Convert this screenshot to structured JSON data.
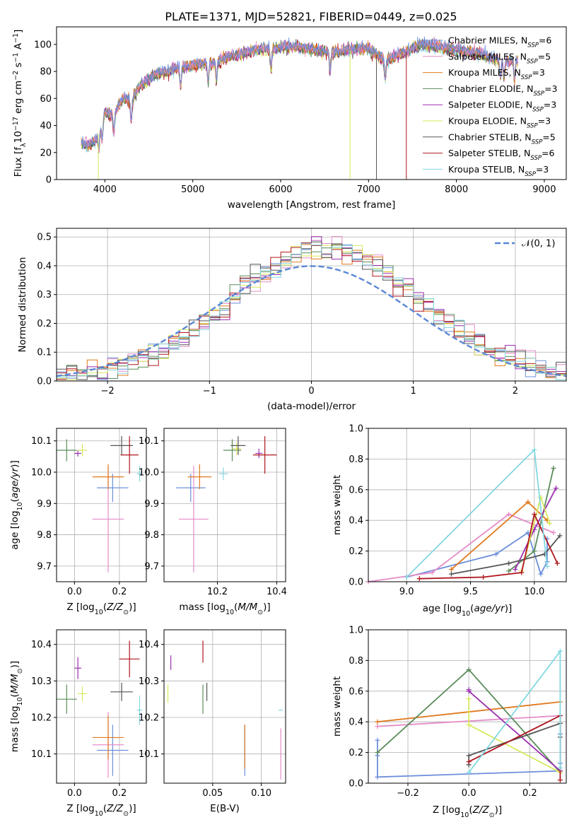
{
  "title": "PLATE=1371, MJD=52821, FIBERID=0449, z=0.025",
  "colors": {
    "Chabrier MILES": "#6c8fdb",
    "Salpeter MILES": "#e58cc8",
    "Kroupa MILES": "#e07a1f",
    "Chabrier ELODIE": "#5b8c5a",
    "Salpeter ELODIE": "#9b2fae",
    "Kroupa ELODIE": "#d7e85a",
    "Chabrier STELIB": "#555555",
    "Salpeter STELIB": "#b0171f",
    "Kroupa STELIB": "#82d8e0"
  },
  "chart_data": [
    {
      "id": "spectrum",
      "type": "line",
      "title": "PLATE=1371, MJD=52821, FIBERID=0449, z=0.025",
      "xlabel": "wavelength [Angstrom, rest frame]",
      "ylabel": "Flux [f_λ 10^-17 erg cm^-2 s^-1 A^-1]",
      "xlim": [
        3450,
        9250
      ],
      "ylim": [
        0,
        113
      ],
      "xticks": [
        4000,
        5000,
        6000,
        7000,
        8000,
        9000
      ],
      "yticks": [
        0,
        20,
        40,
        60,
        80,
        100
      ],
      "legend": "right",
      "legend_labels": [
        {
          "name": "Chabrier MILES",
          "n": "6"
        },
        {
          "name": "Salpeter MILES",
          "n": "5"
        },
        {
          "name": "Kroupa MILES",
          "n": "3"
        },
        {
          "name": "Chabrier ELODIE",
          "n": "3"
        },
        {
          "name": "Salpeter ELODIE",
          "n": "3"
        },
        {
          "name": "Kroupa ELODIE",
          "n": "3"
        },
        {
          "name": "Chabrier STELIB",
          "n": "5"
        },
        {
          "name": "Salpeter STELIB",
          "n": "6"
        },
        {
          "name": "Kroupa STELIB",
          "n": "3"
        }
      ],
      "continuum": {
        "x": [
          3730,
          3800,
          3900,
          4000,
          4100,
          4200,
          4300,
          4400,
          4500,
          4600,
          4800,
          5000,
          5200,
          5400,
          5600,
          5800,
          5900,
          6000,
          6200,
          6400,
          6600,
          6800,
          6900,
          7000,
          7100,
          7200,
          7400,
          7600,
          7800,
          8000,
          8200,
          8400,
          8600,
          8700
        ],
        "y": [
          28,
          25,
          29,
          50,
          48,
          60,
          58,
          70,
          75,
          78,
          82,
          85,
          86,
          91,
          94,
          97,
          96,
          98,
          98,
          96,
          94,
          96,
          97,
          97,
          92,
          88,
          94,
          100,
          98,
          96,
          94,
          90,
          88,
          88
        ]
      },
      "absorption_features": [
        3933,
        3968,
        4102,
        4300,
        4861,
        5175,
        5270,
        5890,
        6563,
        7190,
        8500,
        8542,
        8662
      ],
      "spikes": [
        {
          "x": 3925,
          "series": "Kroupa ELODIE"
        },
        {
          "x": 6790,
          "series": "Kroupa ELODIE"
        },
        {
          "x": 7090,
          "series": "Chabrier STELIB"
        },
        {
          "x": 7430,
          "series": "Salpeter STELIB"
        }
      ]
    },
    {
      "id": "residuals",
      "type": "line",
      "xlabel": "(data-model)/error",
      "ylabel": "Normed distribution",
      "xlim": [
        -2.5,
        2.5
      ],
      "ylim": [
        0,
        0.53
      ],
      "xticks": [
        -2,
        -1,
        0,
        1,
        2
      ],
      "yticks": [
        0.0,
        0.1,
        0.2,
        0.3,
        0.4,
        0.5
      ],
      "grid": true,
      "legend": "top-right",
      "gaussian_label": "𝒩(0, 1)",
      "bin_width": 0.1
    },
    {
      "id": "age-vs-Z",
      "type": "scatter",
      "xlabel": "Z [log10(Z/Z⊙)]",
      "ylabel": "age [log10(age/yr)]",
      "xlim": [
        -0.08,
        0.32
      ],
      "ylim": [
        9.65,
        10.14
      ],
      "xticks": [
        0.0,
        0.2
      ],
      "yticks": [
        9.7,
        9.8,
        9.9,
        10.0,
        10.1
      ],
      "grid": true,
      "points": [
        {
          "series": "Chabrier MILES",
          "x": 0.17,
          "y": 9.95,
          "xerr": 0.07,
          "yerr": 0.045
        },
        {
          "series": "Salpeter MILES",
          "x": 0.15,
          "y": 9.85,
          "xerr": 0.07,
          "yerr": 0.17
        },
        {
          "series": "Kroupa MILES",
          "x": 0.15,
          "y": 9.985,
          "xerr": 0.07,
          "yerr": 0.04
        },
        {
          "series": "Chabrier ELODIE",
          "x": -0.035,
          "y": 10.07,
          "xerr": 0.045,
          "yerr": 0.035
        },
        {
          "series": "Salpeter ELODIE",
          "x": 0.015,
          "y": 10.06,
          "xerr": 0.015,
          "yerr": 0.01
        },
        {
          "series": "Kroupa ELODIE",
          "x": 0.035,
          "y": 10.07,
          "xerr": 0.02,
          "yerr": 0.02
        },
        {
          "series": "Chabrier STELIB",
          "x": 0.21,
          "y": 10.085,
          "xerr": 0.05,
          "yerr": 0.03
        },
        {
          "series": "Salpeter STELIB",
          "x": 0.245,
          "y": 10.055,
          "xerr": 0.04,
          "yerr": 0.06
        },
        {
          "series": "Kroupa STELIB",
          "x": 0.29,
          "y": 9.995,
          "xerr": 0.012,
          "yerr": 0.025
        }
      ]
    },
    {
      "id": "age-vs-mass",
      "type": "scatter",
      "xlabel": "mass [log10(M/M⊙)]",
      "ylabel": "",
      "xlim": [
        10.02,
        10.43
      ],
      "ylim": [
        9.65,
        10.14
      ],
      "xticks": [
        10.2,
        10.4
      ],
      "yticks": [
        9.7,
        9.8,
        9.9,
        10.0,
        10.1
      ],
      "grid": true,
      "points": [
        {
          "series": "Chabrier MILES",
          "x": 10.11,
          "y": 9.95,
          "xerr": 0.05,
          "yerr": 0.045
        },
        {
          "series": "Salpeter MILES",
          "x": 10.12,
          "y": 9.85,
          "xerr": 0.05,
          "yerr": 0.17
        },
        {
          "series": "Kroupa MILES",
          "x": 10.14,
          "y": 9.985,
          "xerr": 0.04,
          "yerr": 0.04
        },
        {
          "series": "Chabrier ELODIE",
          "x": 10.25,
          "y": 10.07,
          "xerr": 0.03,
          "yerr": 0.035
        },
        {
          "series": "Salpeter ELODIE",
          "x": 10.34,
          "y": 10.06,
          "xerr": 0.012,
          "yerr": 0.015
        },
        {
          "series": "Kroupa ELODIE",
          "x": 10.265,
          "y": 10.075,
          "xerr": 0.015,
          "yerr": 0.02
        },
        {
          "series": "Chabrier STELIB",
          "x": 10.27,
          "y": 10.085,
          "xerr": 0.025,
          "yerr": 0.03
        },
        {
          "series": "Salpeter STELIB",
          "x": 10.36,
          "y": 10.055,
          "xerr": 0.04,
          "yerr": 0.06
        },
        {
          "series": "Kroupa STELIB",
          "x": 10.22,
          "y": 9.995,
          "xerr": 0.015,
          "yerr": 0.02
        }
      ]
    },
    {
      "id": "massweight-vs-age",
      "type": "line",
      "xlabel": "age [log10(age/yr)]",
      "ylabel": "mass weight",
      "xlim": [
        8.7,
        10.25
      ],
      "ylim": [
        0.0,
        1.0
      ],
      "xticks": [
        9.0,
        9.5,
        10.0
      ],
      "yticks": [
        0.0,
        0.2,
        0.4,
        0.6,
        0.8,
        1.0
      ],
      "grid": true,
      "series": [
        {
          "name": "Chabrier MILES",
          "x": [
            9.0,
            9.7,
            9.95,
            10.05,
            10.1,
            10.1
          ],
          "y": [
            0.03,
            0.18,
            0.32,
            0.05,
            0.13,
            0.28
          ]
        },
        {
          "name": "Salpeter MILES",
          "x": [
            8.7,
            9.2,
            9.8,
            10.15
          ],
          "y": [
            0.0,
            0.06,
            0.44,
            0.32
          ]
        },
        {
          "name": "Kroupa MILES",
          "x": [
            9.35,
            9.95,
            10.1
          ],
          "y": [
            0.08,
            0.52,
            0.4
          ]
        },
        {
          "name": "Chabrier ELODIE",
          "x": [
            9.8,
            10.0,
            10.15
          ],
          "y": [
            0.07,
            0.2,
            0.74
          ]
        },
        {
          "name": "Salpeter ELODIE",
          "x": [
            9.85,
            10.0,
            10.17
          ],
          "y": [
            0.08,
            0.34,
            0.61
          ]
        },
        {
          "name": "Kroupa ELODIE",
          "x": [
            9.9,
            10.05,
            10.12
          ],
          "y": [
            0.07,
            0.55,
            0.38
          ]
        },
        {
          "name": "Chabrier STELIB",
          "x": [
            9.35,
            9.8,
            10.08,
            10.2
          ],
          "y": [
            0.05,
            0.12,
            0.18,
            0.3
          ]
        },
        {
          "name": "Salpeter STELIB",
          "x": [
            9.1,
            9.6,
            9.9,
            10.0,
            10.18
          ],
          "y": [
            0.02,
            0.03,
            0.06,
            0.44,
            0.12
          ]
        },
        {
          "name": "Kroupa STELIB",
          "x": [
            9.0,
            10.0,
            10.1
          ],
          "y": [
            0.03,
            0.86,
            0.1
          ]
        }
      ]
    },
    {
      "id": "mass-vs-Z",
      "type": "scatter",
      "xlabel": "Z [log10(Z/Z⊙)]",
      "ylabel": "mass [log10(M/M⊙)]",
      "xlim": [
        -0.08,
        0.32
      ],
      "ylim": [
        10.02,
        10.44
      ],
      "xticks": [
        0.0,
        0.2
      ],
      "yticks": [
        10.1,
        10.2,
        10.3,
        10.4
      ],
      "grid": true,
      "points": [
        {
          "series": "Chabrier MILES",
          "x": 0.17,
          "y": 10.11,
          "xerr": 0.07,
          "yerr": 0.07
        },
        {
          "series": "Salpeter MILES",
          "x": 0.15,
          "y": 10.125,
          "xerr": 0.07,
          "yerr": 0.09
        },
        {
          "series": "Kroupa MILES",
          "x": 0.15,
          "y": 10.145,
          "xerr": 0.07,
          "yerr": 0.06
        },
        {
          "series": "Chabrier ELODIE",
          "x": -0.035,
          "y": 10.25,
          "xerr": 0.045,
          "yerr": 0.04
        },
        {
          "series": "Salpeter ELODIE",
          "x": 0.015,
          "y": 10.335,
          "xerr": 0.015,
          "yerr": 0.03
        },
        {
          "series": "Kroupa ELODIE",
          "x": 0.035,
          "y": 10.265,
          "xerr": 0.02,
          "yerr": 0.02
        },
        {
          "series": "Chabrier STELIB",
          "x": 0.21,
          "y": 10.27,
          "xerr": 0.05,
          "yerr": 0.025
        },
        {
          "series": "Salpeter STELIB",
          "x": 0.245,
          "y": 10.36,
          "xerr": 0.045,
          "yerr": 0.05
        },
        {
          "series": "Kroupa STELIB",
          "x": 0.29,
          "y": 10.22,
          "xerr": 0.012,
          "yerr": 0.04
        }
      ]
    },
    {
      "id": "mass-vs-EBV",
      "type": "scatter",
      "xlabel": "E(B-V)",
      "ylabel": "",
      "xlim": [
        0.0,
        0.125
      ],
      "ylim": [
        10.02,
        10.44
      ],
      "xticks": [
        0.05,
        0.1
      ],
      "yticks": [
        10.1,
        10.2,
        10.3,
        10.4
      ],
      "grid": true,
      "points": [
        {
          "series": "Chabrier MILES",
          "x": 0.083,
          "y": 10.11,
          "xerr": 0.0,
          "yerr": 0.07
        },
        {
          "series": "Salpeter MILES",
          "x": 0.12,
          "y": 10.1,
          "xerr": 0.0,
          "yerr": 0.07
        },
        {
          "series": "Kroupa MILES",
          "x": 0.083,
          "y": 10.12,
          "xerr": 0.0,
          "yerr": 0.06
        },
        {
          "series": "Chabrier ELODIE",
          "x": 0.04,
          "y": 10.25,
          "xerr": 0.0,
          "yerr": 0.04
        },
        {
          "series": "Salpeter ELODIE",
          "x": 0.007,
          "y": 10.35,
          "xerr": 0.0,
          "yerr": 0.02
        },
        {
          "series": "Kroupa ELODIE",
          "x": 0.004,
          "y": 10.265,
          "xerr": 0.0,
          "yerr": 0.025
        },
        {
          "series": "Chabrier STELIB",
          "x": 0.044,
          "y": 10.27,
          "xerr": 0.0,
          "yerr": 0.025
        },
        {
          "series": "Salpeter STELIB",
          "x": 0.04,
          "y": 10.38,
          "xerr": 0.0,
          "yerr": 0.03
        },
        {
          "series": "Kroupa STELIB",
          "x": 0.12,
          "y": 10.22,
          "xerr": 0.0,
          "yerr": 0.0
        }
      ]
    },
    {
      "id": "massweight-vs-Z",
      "type": "line",
      "xlabel": "Z [log10(Z/Z⊙)]",
      "ylabel": "mass weight",
      "xlim": [
        -0.33,
        0.32
      ],
      "ylim": [
        0.0,
        1.0
      ],
      "xticks": [
        -0.2,
        0.0,
        0.2
      ],
      "yticks": [
        0.0,
        0.2,
        0.4,
        0.6,
        0.8,
        1.0
      ],
      "grid": true,
      "series": [
        {
          "name": "Chabrier MILES",
          "x": [
            -0.3,
            -0.3,
            -0.3,
            0.3,
            0.3,
            0.3
          ],
          "y": [
            0.28,
            0.18,
            0.04,
            0.08,
            0.13,
            0.32
          ]
        },
        {
          "name": "Salpeter MILES",
          "x": [
            -0.3,
            0.3
          ],
          "y": [
            0.37,
            0.44
          ]
        },
        {
          "name": "Kroupa MILES",
          "x": [
            -0.3,
            0.3
          ],
          "y": [
            0.4,
            0.53
          ]
        },
        {
          "name": "Chabrier ELODIE",
          "x": [
            -0.3,
            0.0,
            0.3
          ],
          "y": [
            0.2,
            0.74,
            0.07
          ]
        },
        {
          "name": "Salpeter ELODIE",
          "x": [
            0.0,
            0.0,
            0.3
          ],
          "y": [
            0.61,
            0.6,
            0.08
          ]
        },
        {
          "name": "Kroupa ELODIE",
          "x": [
            0.0,
            0.0,
            0.3
          ],
          "y": [
            0.55,
            0.38,
            0.07
          ]
        },
        {
          "name": "Chabrier STELIB",
          "x": [
            0.0,
            0.0,
            0.3,
            0.3
          ],
          "y": [
            0.12,
            0.18,
            0.39,
            0.3
          ]
        },
        {
          "name": "Salpeter STELIB",
          "x": [
            0.0,
            0.3,
            0.3
          ],
          "y": [
            0.14,
            0.44,
            0.02
          ]
        },
        {
          "name": "Kroupa STELIB",
          "x": [
            0.0,
            0.3,
            0.3
          ],
          "y": [
            0.07,
            0.86,
            0.1
          ]
        }
      ]
    }
  ]
}
